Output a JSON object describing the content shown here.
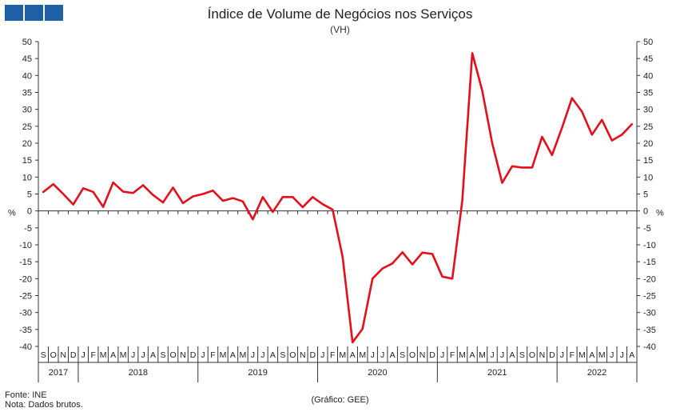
{
  "header": {
    "logo_icon": "gee-logo-icon",
    "title": "Índice de Volume de Negócios nos Serviços",
    "subtitle": "(VH)"
  },
  "footer": {
    "source": "Fonte: INE",
    "note": "Nota: Dados brutos.",
    "credit": "(Gráfico: GEE)"
  },
  "chart_data": {
    "type": "line",
    "title": "Índice de Volume de Negócios nos Serviços",
    "subtitle": "(VH)",
    "ylabel": "%",
    "ylim": [
      -40,
      50
    ],
    "y_ticks": [
      50,
      45,
      40,
      35,
      30,
      25,
      20,
      15,
      10,
      5,
      0,
      -5,
      -10,
      -15,
      -20,
      -25,
      -30,
      -35,
      -40
    ],
    "y_axis_sides": "both",
    "grid": false,
    "legend": "none",
    "line_color": "#e3101b",
    "month_labels": [
      "S",
      "O",
      "N",
      "D",
      "J",
      "F",
      "M",
      "A",
      "M",
      "J",
      "J",
      "A",
      "S",
      "O",
      "N",
      "D",
      "J",
      "F",
      "M",
      "A",
      "M",
      "J",
      "J",
      "A",
      "S",
      "O",
      "N",
      "D",
      "J",
      "F",
      "M",
      "A",
      "M",
      "J",
      "J",
      "A",
      "S",
      "O",
      "N",
      "D",
      "J",
      "F",
      "M",
      "A",
      "M",
      "J",
      "J",
      "A",
      "S",
      "O",
      "N",
      "D",
      "J",
      "F",
      "M",
      "A",
      "M",
      "J",
      "J",
      "A"
    ],
    "years": [
      {
        "label": "2017",
        "months": 4
      },
      {
        "label": "2018",
        "months": 12
      },
      {
        "label": "2019",
        "months": 12
      },
      {
        "label": "2020",
        "months": 12
      },
      {
        "label": "2021",
        "months": 12
      },
      {
        "label": "2022",
        "months": 8
      }
    ],
    "series": [
      {
        "values": [
          5.6,
          7.9,
          5.0,
          1.9,
          6.7,
          5.6,
          1.2,
          8.4,
          5.7,
          5.3,
          7.6,
          4.7,
          2.5,
          6.9,
          2.3,
          4.3,
          5.0,
          6.0,
          3.0,
          3.8,
          2.8,
          -2.5,
          4.1,
          -0.3,
          4.1,
          4.1,
          1.1,
          4.1,
          2.0,
          0.4,
          -13.5,
          -38.8,
          -34.8,
          -20.0,
          -17.0,
          -15.5,
          -12.2,
          -15.8,
          -12.3,
          -12.7,
          -19.4,
          -20.0,
          3.0,
          46.6,
          35.5,
          20.0,
          8.3,
          13.2,
          12.8,
          12.8,
          21.9,
          16.5,
          24.6,
          33.3,
          29.3,
          22.5,
          26.9,
          20.8,
          22.5,
          25.6
        ]
      }
    ]
  }
}
